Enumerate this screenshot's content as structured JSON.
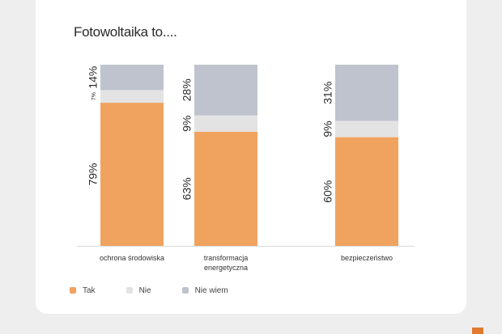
{
  "chart_data": {
    "type": "bar",
    "stacked": true,
    "horizontal": false,
    "title": "Fotowoltaika to....",
    "categories": [
      "ochrona środowiska",
      "transformacja energetyczna",
      "bezpieczeństwo"
    ],
    "category_lines": [
      [
        "ochrona środowiska"
      ],
      [
        "transformacja",
        "energetyczna"
      ],
      [
        "bezpieczeństwo"
      ]
    ],
    "series": [
      {
        "name": "Tak",
        "values": [
          79,
          63,
          60
        ],
        "labels": [
          "79%",
          "63%",
          "60%"
        ],
        "color": "#f0a35e"
      },
      {
        "name": "Nie",
        "values": [
          7,
          9,
          9
        ],
        "labels": [
          "7%",
          "9%",
          "9%"
        ],
        "color": "#e3e3e3"
      },
      {
        "name": "Nie wiem",
        "values": [
          14,
          28,
          31
        ],
        "labels": [
          "14%",
          "28%",
          "31%"
        ],
        "color": "#bfc3ce"
      }
    ],
    "ylim": [
      0,
      100
    ],
    "legend_position": "bottom-left",
    "grid": false
  }
}
